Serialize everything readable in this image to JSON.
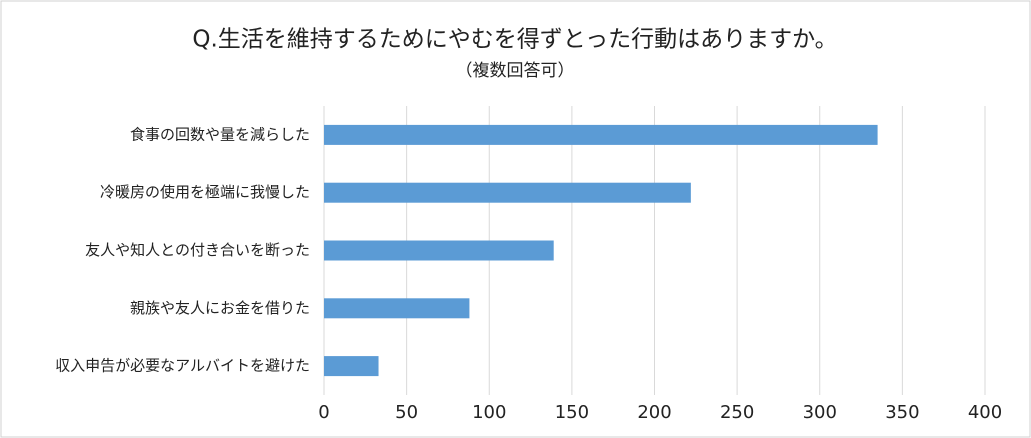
{
  "chart_data": {
    "type": "bar",
    "orientation": "horizontal",
    "title": "Q.生活を維持するためにやむを得ずとった行動はありますか。",
    "subtitle": "（複数回答可）",
    "categories": [
      "食事の回数や量を減らした",
      "冷暖房の使用を極端に我慢した",
      "友人や知人との付き合いを断った",
      "親族や友人にお金を借りた",
      "収入申告が必要なアルバイトを避けた"
    ],
    "values": [
      335,
      222,
      139,
      88,
      33
    ],
    "color": "#5b9bd5",
    "xlim": [
      0,
      400
    ],
    "xticks": [
      0,
      50,
      100,
      150,
      200,
      250,
      300,
      350,
      400
    ],
    "grid": true
  }
}
